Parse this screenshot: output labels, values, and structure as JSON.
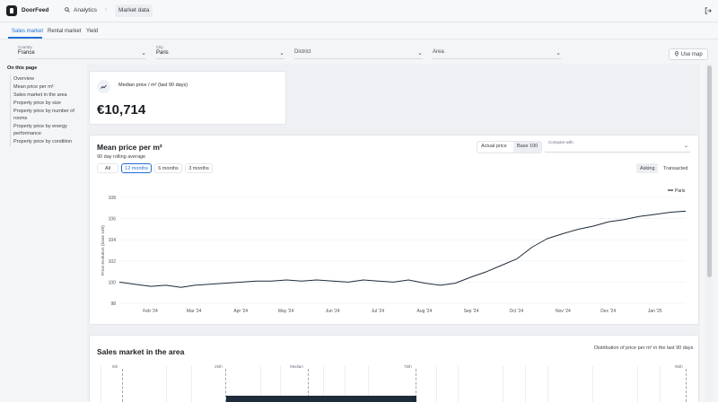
{
  "app": {
    "brand": "DoorFeed"
  },
  "breadcrumb": {
    "search_label": "Analytics",
    "separator": "›",
    "current": "Market data"
  },
  "tabs": [
    {
      "label": "Sales market",
      "active": true
    },
    {
      "label": "Rental market",
      "active": false
    },
    {
      "label": "Yield",
      "active": false
    }
  ],
  "filters": {
    "country": {
      "label": "Country",
      "value": "France"
    },
    "city": {
      "label": "City",
      "value": "Paris"
    },
    "district": {
      "placeholder": "District"
    },
    "area": {
      "placeholder": "Area"
    },
    "use_map": "Use map"
  },
  "toc": {
    "title": "On this page",
    "items": [
      "Overview",
      "Mean price per m²",
      "Sales market in the area",
      "Property price by size",
      "Property price by number of rooms",
      "Property price by energy performance",
      "Property price by condition"
    ]
  },
  "kpi": {
    "label": "Median price / m² (last 90 days)",
    "value": "€10,714"
  },
  "mean_price": {
    "title": "Mean price per m²",
    "subtitle": "90 day rolling average",
    "mode_actual": "Actual price",
    "mode_base": "Base 100",
    "compare_label": "Compare with",
    "ranges": [
      "All",
      "12 months",
      "6 months",
      "3 months"
    ],
    "active_range": "12 months",
    "asking": "Asking",
    "transacted": "Transacted"
  },
  "chart_data": {
    "type": "line",
    "ylabel": "Price evolution (base 100)",
    "ylim": [
      98,
      108
    ],
    "yticks": [
      98,
      100,
      102,
      104,
      106,
      108
    ],
    "xticks": [
      "Feb '24",
      "Mar '24",
      "Apr '24",
      "May '24",
      "Jun '24",
      "Jul '24",
      "Aug '24",
      "Sep '24",
      "Oct '24",
      "Nov '24",
      "Dec '24",
      "Jan '25"
    ],
    "legend_position": "top-right",
    "grid": "horizontal",
    "color": "#1e2b3a",
    "series": [
      {
        "name": "Paris",
        "x": [
          "2024-01-15",
          "2024-01-25",
          "2024-02-05",
          "2024-02-15",
          "2024-02-25",
          "2024-03-05",
          "2024-03-15",
          "2024-03-25",
          "2024-04-05",
          "2024-04-15",
          "2024-04-25",
          "2024-05-05",
          "2024-05-15",
          "2024-05-25",
          "2024-06-05",
          "2024-06-15",
          "2024-06-25",
          "2024-07-05",
          "2024-07-15",
          "2024-07-25",
          "2024-08-05",
          "2024-08-15",
          "2024-08-25",
          "2024-09-05",
          "2024-09-15",
          "2024-09-25",
          "2024-10-05",
          "2024-10-15",
          "2024-10-25",
          "2024-11-05",
          "2024-11-15",
          "2024-11-25",
          "2024-12-05",
          "2024-12-15",
          "2024-12-25",
          "2025-01-05",
          "2025-01-15",
          "2025-01-25"
        ],
        "values": [
          100.0,
          99.8,
          99.6,
          99.7,
          99.5,
          99.7,
          99.8,
          99.9,
          100.0,
          100.1,
          100.1,
          100.2,
          100.1,
          100.2,
          100.1,
          100.0,
          100.2,
          100.1,
          100.0,
          100.2,
          99.9,
          99.7,
          99.9,
          100.5,
          101.0,
          101.6,
          102.2,
          103.3,
          104.1,
          104.6,
          105.0,
          105.3,
          105.7,
          105.9,
          106.2,
          106.4,
          106.6,
          106.7
        ]
      }
    ]
  },
  "sales_area": {
    "title": "Sales market in the area",
    "note": "Distribution of price per m² in the last 90 days",
    "percentiles": [
      "5th",
      "25th",
      "Median",
      "75th",
      "95th"
    ]
  }
}
